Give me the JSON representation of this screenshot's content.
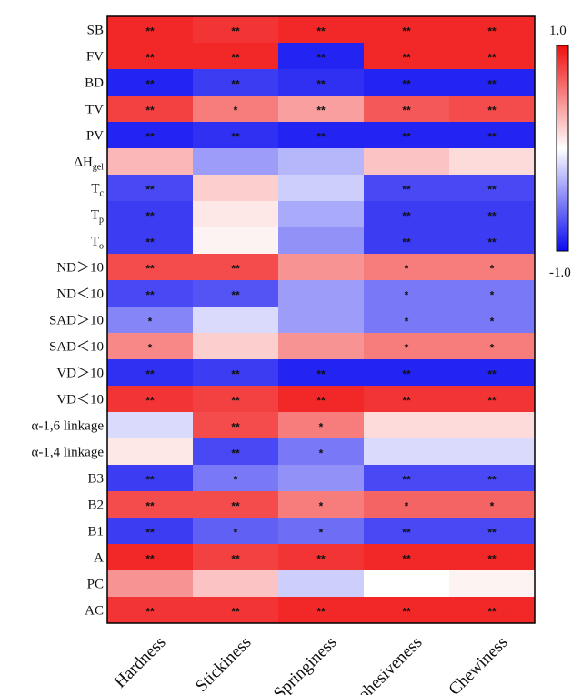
{
  "chart_data": {
    "type": "heatmap",
    "rows": [
      "SB",
      "FV",
      "BD",
      "TV",
      "PV",
      "ΔH",
      "T",
      "T",
      "T",
      "ND＞10",
      "ND＜10",
      "SAD＞10",
      "SAD＜10",
      "VD＞10",
      "VD＜10",
      "α-1,6 linkage",
      "α-1,4 linkage",
      "B3",
      "B2",
      "B1",
      "A",
      "PC",
      "AC"
    ],
    "row_subscripts": [
      "",
      "",
      "",
      "",
      "",
      "gel",
      "c",
      "p",
      "o",
      "",
      "",
      "",
      "",
      "",
      "",
      "",
      "",
      "",
      "",
      "",
      "",
      "",
      ""
    ],
    "columns": [
      "Hardness",
      "Stickiness",
      "Springiness",
      "Cohesiveness",
      "Chewiness"
    ],
    "values": [
      [
        0.9,
        0.85,
        0.9,
        0.9,
        0.9
      ],
      [
        0.9,
        0.9,
        -0.9,
        0.9,
        0.9
      ],
      [
        -0.9,
        -0.8,
        -0.85,
        -0.9,
        -0.9
      ],
      [
        0.8,
        0.55,
        0.4,
        0.7,
        0.75
      ],
      [
        -0.9,
        -0.85,
        -0.9,
        -0.9,
        -0.9
      ],
      [
        0.3,
        -0.4,
        -0.3,
        0.25,
        0.15
      ],
      [
        -0.75,
        0.2,
        -0.2,
        -0.75,
        -0.75
      ],
      [
        -0.8,
        0.1,
        -0.35,
        -0.8,
        -0.8
      ],
      [
        -0.8,
        0.05,
        -0.45,
        -0.8,
        -0.8
      ],
      [
        0.75,
        0.75,
        0.45,
        0.55,
        0.55
      ],
      [
        -0.75,
        -0.7,
        -0.4,
        -0.55,
        -0.55
      ],
      [
        -0.5,
        -0.15,
        -0.4,
        -0.55,
        -0.55
      ],
      [
        0.5,
        0.2,
        0.45,
        0.55,
        0.55
      ],
      [
        -0.85,
        -0.8,
        -0.9,
        -0.9,
        -0.9
      ],
      [
        0.85,
        0.8,
        0.9,
        0.85,
        0.85
      ],
      [
        -0.15,
        0.75,
        0.55,
        0.15,
        0.15
      ],
      [
        0.1,
        -0.75,
        -0.55,
        -0.15,
        -0.15
      ],
      [
        -0.8,
        -0.55,
        -0.45,
        -0.75,
        -0.75
      ],
      [
        0.75,
        0.75,
        0.55,
        0.65,
        0.65
      ],
      [
        -0.8,
        -0.65,
        -0.6,
        -0.75,
        -0.75
      ],
      [
        0.9,
        0.8,
        0.85,
        0.9,
        0.9
      ],
      [
        0.45,
        0.25,
        -0.2,
        0.0,
        0.05
      ],
      [
        0.85,
        0.85,
        0.9,
        0.9,
        0.9
      ]
    ],
    "significance": [
      [
        "**",
        "**",
        "**",
        "**",
        "**"
      ],
      [
        "**",
        "**",
        "**",
        "**",
        "**"
      ],
      [
        "**",
        "**",
        "**",
        "**",
        "**"
      ],
      [
        "**",
        "*",
        "**",
        "**",
        "**"
      ],
      [
        "**",
        "**",
        "**",
        "**",
        "**"
      ],
      [
        "",
        "",
        "",
        "",
        ""
      ],
      [
        "**",
        "",
        "",
        "**",
        "**"
      ],
      [
        "**",
        "",
        "",
        "**",
        "**"
      ],
      [
        "**",
        "",
        "",
        "**",
        "**"
      ],
      [
        "**",
        "**",
        "",
        "*",
        "*"
      ],
      [
        "**",
        "**",
        "",
        "*",
        "*"
      ],
      [
        "*",
        "",
        "",
        "*",
        "*"
      ],
      [
        "*",
        "",
        "",
        "*",
        "*"
      ],
      [
        "**",
        "**",
        "**",
        "**",
        "**"
      ],
      [
        "**",
        "**",
        "**",
        "**",
        "**"
      ],
      [
        "",
        "**",
        "*",
        "",
        ""
      ],
      [
        "",
        "**",
        "*",
        "",
        ""
      ],
      [
        "**",
        "*",
        "",
        "**",
        "**"
      ],
      [
        "**",
        "**",
        "*",
        "*",
        "*"
      ],
      [
        "**",
        "*",
        "*",
        "**",
        "**"
      ],
      [
        "**",
        "**",
        "**",
        "**",
        "**"
      ],
      [
        "",
        "",
        "",
        "",
        ""
      ],
      [
        "**",
        "**",
        "**",
        "**",
        "**"
      ]
    ],
    "colorbar": {
      "min": -1.0,
      "max": 1.0,
      "tick_labels": [
        "1.0",
        "-1.0"
      ],
      "low_color": "#0b0bf0",
      "mid_color": "#ffffff",
      "high_color": "#f01010"
    }
  }
}
